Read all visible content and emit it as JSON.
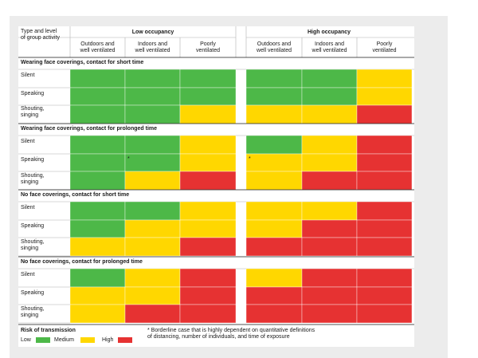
{
  "header": {
    "corner_label": "Type and level\nof group activity",
    "groups": [
      "Low occupancy",
      "High occupancy"
    ],
    "columns": [
      "Outdoors and\nwell ventilated",
      "Indoors and\nwell ventilated",
      "Poorly\nventilated",
      "Outdoors and\nwell ventilated",
      "Indoors and\nwell ventilated",
      "Poorly\nventilated"
    ]
  },
  "chart_data": {
    "type": "heatmap",
    "groups": [
      "Low occupancy",
      "High occupancy"
    ],
    "columns": [
      "Outdoors and well ventilated",
      "Indoors and well ventilated",
      "Poorly ventilated",
      "Outdoors and well ventilated",
      "Indoors and well ventilated",
      "Poorly ventilated"
    ],
    "sections": [
      {
        "title": "Wearing face coverings, contact for short time",
        "rows": [
          {
            "label": "Silent",
            "cells": [
              "Low",
              "Low",
              "Low",
              "Low",
              "Low",
              "Medium"
            ],
            "borderline": [
              false,
              false,
              false,
              false,
              false,
              false
            ]
          },
          {
            "label": "Speaking",
            "cells": [
              "Low",
              "Low",
              "Low",
              "Low",
              "Low",
              "Medium"
            ],
            "borderline": [
              false,
              false,
              false,
              false,
              false,
              false
            ]
          },
          {
            "label": "Shouting,\nsinging",
            "cells": [
              "Low",
              "Low",
              "Medium",
              "Medium",
              "Medium",
              "High"
            ],
            "borderline": [
              false,
              false,
              false,
              false,
              false,
              false
            ]
          }
        ]
      },
      {
        "title": "Wearing face coverings, contact for prolonged time",
        "rows": [
          {
            "label": "Silent",
            "cells": [
              "Low",
              "Low",
              "Medium",
              "Low",
              "Medium",
              "High"
            ],
            "borderline": [
              false,
              false,
              false,
              false,
              false,
              false
            ]
          },
          {
            "label": "Speaking",
            "cells": [
              "Low",
              "Low",
              "Medium",
              "Medium",
              "Medium",
              "High"
            ],
            "borderline": [
              false,
              true,
              false,
              true,
              false,
              false
            ]
          },
          {
            "label": "Shouting,\nsinging",
            "cells": [
              "Low",
              "Medium",
              "High",
              "Medium",
              "High",
              "High"
            ],
            "borderline": [
              false,
              false,
              false,
              false,
              false,
              false
            ]
          }
        ]
      },
      {
        "title": "No face coverings, contact for short time",
        "rows": [
          {
            "label": "Silent",
            "cells": [
              "Low",
              "Low",
              "Medium",
              "Medium",
              "Medium",
              "High"
            ],
            "borderline": [
              false,
              false,
              false,
              false,
              false,
              false
            ]
          },
          {
            "label": "Speaking",
            "cells": [
              "Low",
              "Medium",
              "Medium",
              "Medium",
              "High",
              "High"
            ],
            "borderline": [
              false,
              false,
              false,
              false,
              false,
              false
            ]
          },
          {
            "label": "Shouting,\nsinging",
            "cells": [
              "Medium",
              "Medium",
              "High",
              "High",
              "High",
              "High"
            ],
            "borderline": [
              false,
              false,
              false,
              false,
              false,
              false
            ]
          }
        ]
      },
      {
        "title": "No face coverings, contact for prolonged time",
        "rows": [
          {
            "label": "Silent",
            "cells": [
              "Low",
              "Medium",
              "High",
              "Medium",
              "High",
              "High"
            ],
            "borderline": [
              false,
              false,
              false,
              false,
              false,
              false
            ]
          },
          {
            "label": "Speaking",
            "cells": [
              "Medium",
              "Medium",
              "High",
              "High",
              "High",
              "High"
            ],
            "borderline": [
              false,
              false,
              false,
              false,
              false,
              false
            ]
          },
          {
            "label": "Shouting,\nsinging",
            "cells": [
              "Medium",
              "High",
              "High",
              "High",
              "High",
              "High"
            ],
            "borderline": [
              false,
              false,
              false,
              false,
              false,
              false
            ]
          }
        ]
      }
    ],
    "legend": {
      "title": "Risk of transmission",
      "items": [
        {
          "label": "Low",
          "color": "#4db848"
        },
        {
          "label": "Medium",
          "color": "#ffd700"
        },
        {
          "label": "High",
          "color": "#e63232"
        }
      ]
    },
    "borderline_marker": "*"
  },
  "footnote": "* Borderline case that is highly dependent on quantitative definitions\nof distancing, number of individuals, and time of exposure",
  "colors": {
    "low": "#4db848",
    "medium": "#ffd700",
    "high": "#e63232",
    "section_rule": "#1a1a1a",
    "grid_rule": "#b0b0b0",
    "panel": "#ececec"
  }
}
